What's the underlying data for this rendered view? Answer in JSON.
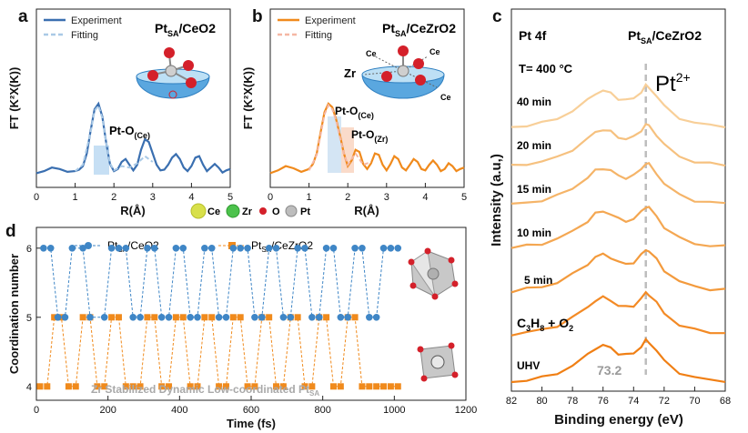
{
  "chart_data": [
    {
      "panel": "a",
      "type": "line",
      "title_main": "Pt",
      "title_sub": "SA",
      "title_rest": "/CeO2",
      "xlabel": "R(Å)",
      "ylabel": "FT (K²X(K))",
      "xlim": [
        0,
        5
      ],
      "x_ticks": [
        "0",
        "1",
        "2",
        "3",
        "4",
        "5"
      ],
      "legend": [
        "Experiment",
        "Fitting"
      ],
      "annotation_main": "Pt-O",
      "annotation_sub": "(Ce)",
      "series": [
        {
          "name": "Experiment",
          "color": "#3a6fb0",
          "x": [
            0,
            0.2,
            0.4,
            0.6,
            0.8,
            1.0,
            1.1,
            1.2,
            1.3,
            1.4,
            1.5,
            1.6,
            1.7,
            1.8,
            1.9,
            2.0,
            2.1,
            2.2,
            2.3,
            2.4,
            2.5,
            2.6,
            2.7,
            2.8,
            2.9,
            3.0,
            3.1,
            3.2,
            3.3,
            3.4,
            3.5,
            3.6,
            3.7,
            3.8,
            3.9,
            4.0,
            4.1,
            4.2,
            4.3,
            4.4,
            4.5,
            4.6,
            4.7,
            4.8,
            4.9,
            5.0
          ],
          "y": [
            0.02,
            0.05,
            0.1,
            0.08,
            0.04,
            0.05,
            0.07,
            0.12,
            0.3,
            0.62,
            0.92,
            1.0,
            0.82,
            0.45,
            0.15,
            0.05,
            0.08,
            0.18,
            0.22,
            0.14,
            0.06,
            0.14,
            0.35,
            0.5,
            0.46,
            0.3,
            0.14,
            0.06,
            0.07,
            0.14,
            0.24,
            0.29,
            0.22,
            0.1,
            0.05,
            0.12,
            0.24,
            0.26,
            0.14,
            0.05,
            0.1,
            0.15,
            0.1,
            0.03,
            0.06,
            0.08
          ]
        },
        {
          "name": "Fitting",
          "color": "#a9c9e6",
          "x": [
            1.0,
            1.2,
            1.4,
            1.5,
            1.6,
            1.7,
            1.8,
            1.9,
            2.0,
            2.2,
            2.4,
            2.6,
            2.8,
            3.0
          ],
          "y": [
            0.05,
            0.14,
            0.6,
            0.9,
            0.97,
            0.8,
            0.45,
            0.16,
            0.06,
            0.12,
            0.1,
            0.16,
            0.26,
            0.18
          ]
        }
      ]
    },
    {
      "panel": "b",
      "type": "line",
      "title_main": "Pt",
      "title_sub": "SA",
      "title_rest": "/CeZrO2",
      "xlabel": "R(Å)",
      "ylabel": "FT (K²X(K))",
      "xlim": [
        0,
        5
      ],
      "x_ticks": [
        "0",
        "1",
        "2",
        "3",
        "4",
        "5"
      ],
      "legend": [
        "Experiment",
        "Fitting"
      ],
      "annotations": [
        {
          "main": "Pt-O",
          "sub": "(Ce)"
        },
        {
          "main": "Pt-O",
          "sub": "(Zr)"
        }
      ],
      "series": [
        {
          "name": "Experiment",
          "color": "#f08a1c",
          "x": [
            0,
            0.2,
            0.4,
            0.6,
            0.8,
            1.0,
            1.1,
            1.2,
            1.3,
            1.4,
            1.5,
            1.6,
            1.7,
            1.8,
            1.9,
            2.0,
            2.1,
            2.2,
            2.3,
            2.4,
            2.5,
            2.6,
            2.7,
            2.8,
            2.9,
            3.0,
            3.1,
            3.2,
            3.3,
            3.4,
            3.5,
            3.6,
            3.7,
            3.8,
            3.9,
            4.0,
            4.1,
            4.2,
            4.3,
            4.4,
            4.5,
            4.6,
            4.7,
            4.8,
            4.9,
            5.0
          ],
          "y": [
            0.02,
            0.06,
            0.12,
            0.09,
            0.04,
            0.08,
            0.15,
            0.3,
            0.6,
            0.88,
            1.0,
            0.95,
            0.78,
            0.55,
            0.3,
            0.12,
            0.2,
            0.35,
            0.32,
            0.15,
            0.08,
            0.16,
            0.3,
            0.28,
            0.14,
            0.06,
            0.15,
            0.26,
            0.22,
            0.1,
            0.06,
            0.14,
            0.22,
            0.18,
            0.08,
            0.06,
            0.14,
            0.2,
            0.14,
            0.05,
            0.08,
            0.16,
            0.12,
            0.05,
            0.08,
            0.1
          ]
        },
        {
          "name": "Fitting",
          "color": "#f5b7a4",
          "x": [
            1.0,
            1.2,
            1.4,
            1.5,
            1.6,
            1.7,
            1.8,
            1.9,
            2.0,
            2.2,
            2.4,
            2.6
          ],
          "y": [
            0.06,
            0.28,
            0.85,
            0.98,
            0.92,
            0.76,
            0.52,
            0.3,
            0.14,
            0.3,
            0.14,
            0.18
          ]
        }
      ]
    },
    {
      "panel": "c",
      "type": "line",
      "title_main": "Pt",
      "title_sub": "SA",
      "title_rest": "/CeZrO2",
      "corner_label": "Pt 4f",
      "condition": "T= 400 °C",
      "peak_label": "Pt",
      "peak_sup": "2+",
      "ref_value_label": "73.2",
      "ref_line_x": 73.2,
      "gas_main": "C",
      "gas_sub1": "3",
      "gas_mid": "H",
      "gas_sub2": "8",
      "gas_rest": " + O",
      "gas_sub3": "2",
      "xlabel": "Binding energy (eV)",
      "ylabel": "Intensity (a.u,)",
      "xlim": [
        82,
        68
      ],
      "x_ticks": [
        "82",
        "80",
        "78",
        "76",
        "74",
        "72",
        "70",
        "68"
      ],
      "series": [
        {
          "name": "UHV",
          "color": "#f07f14",
          "offset": 0.0
        },
        {
          "name": "C3H8 + O2",
          "color": "#f38a25",
          "offset": 1.05
        },
        {
          "name": "5 min",
          "color": "#f39a3c",
          "offset": 2.0
        },
        {
          "name": "10 min",
          "color": "#f4a752",
          "offset": 2.95
        },
        {
          "name": "15 min",
          "color": "#f5b468",
          "offset": 3.9
        },
        {
          "name": "20 min",
          "color": "#f6c17f",
          "offset": 4.75
        },
        {
          "name": "40 min",
          "color": "#f8cf98",
          "offset": 5.6
        }
      ],
      "spectrum_x": [
        82,
        81,
        80,
        79,
        78,
        77,
        76.5,
        76,
        75.5,
        75,
        74.5,
        74,
        73.5,
        73.2,
        73,
        72.5,
        72,
        71,
        70,
        69,
        68
      ],
      "spectrum_y": [
        0.0,
        0.05,
        0.1,
        0.2,
        0.38,
        0.62,
        0.78,
        0.84,
        0.78,
        0.66,
        0.62,
        0.66,
        0.82,
        0.95,
        0.92,
        0.72,
        0.48,
        0.22,
        0.1,
        0.05,
        0.03
      ]
    },
    {
      "panel": "d",
      "type": "line",
      "xlabel": "Time (fs)",
      "ylabel": "Coordination number",
      "xlim": [
        0,
        1200
      ],
      "ylim": [
        3.8,
        6.3
      ],
      "x_ticks": [
        "0",
        "200",
        "400",
        "600",
        "800",
        "1000",
        "1200"
      ],
      "y_ticks": [
        "4",
        "5",
        "6"
      ],
      "legend": [
        {
          "main": "Pt",
          "sub": "SA",
          "rest": "/CeO2"
        },
        {
          "main": "Pt",
          "sub": "SA",
          "rest": "/CeZrO2"
        }
      ],
      "footer_main": "Zr Stabilized Dynamic Low-coordinated Pt",
      "footer_sub": "SA",
      "series": [
        {
          "name": "PtSA/CeO2",
          "color": "#3f86c6",
          "marker": "circle",
          "x": [
            20,
            40,
            60,
            80,
            100,
            130,
            150,
            190,
            210,
            230,
            250,
            270,
            290,
            310,
            330,
            350,
            370,
            390,
            410,
            430,
            450,
            470,
            490,
            510,
            530,
            550,
            570,
            590,
            610,
            630,
            650,
            670,
            690,
            710,
            730,
            750,
            770,
            790,
            810,
            830,
            850,
            870,
            890,
            910,
            930,
            950,
            970,
            990,
            1010
          ],
          "y": [
            6,
            6,
            5,
            5,
            6,
            6,
            5,
            5,
            6,
            6,
            6,
            5,
            5,
            6,
            6,
            5,
            5,
            6,
            6,
            5,
            5,
            6,
            6,
            5,
            5,
            6,
            6,
            6,
            5,
            5,
            6,
            6,
            5,
            5,
            6,
            6,
            5,
            5,
            6,
            6,
            5,
            5,
            6,
            6,
            5,
            5,
            6,
            6,
            6
          ]
        },
        {
          "name": "PtSA/CeZrO2",
          "color": "#f08a1c",
          "marker": "square",
          "x": [
            10,
            30,
            50,
            70,
            90,
            110,
            130,
            150,
            170,
            190,
            210,
            230,
            250,
            270,
            290,
            310,
            330,
            350,
            370,
            390,
            410,
            430,
            450,
            470,
            490,
            510,
            530,
            550,
            570,
            590,
            610,
            630,
            650,
            670,
            690,
            710,
            730,
            750,
            770,
            790,
            810,
            830,
            850,
            870,
            890,
            910,
            930,
            950,
            970,
            990,
            1010
          ],
          "y": [
            4,
            4,
            5,
            5,
            4,
            4,
            5,
            5,
            4,
            4,
            5,
            5,
            4,
            4,
            4,
            5,
            5,
            4,
            4,
            5,
            5,
            4,
            4,
            5,
            5,
            4,
            4,
            5,
            5,
            4,
            4,
            5,
            5,
            4,
            4,
            5,
            5,
            4,
            4,
            5,
            5,
            4,
            4,
            5,
            5,
            4,
            4,
            4,
            4,
            4,
            4
          ]
        }
      ]
    }
  ],
  "element_legend": {
    "items": [
      {
        "label": "Ce",
        "color": "#d8e04a"
      },
      {
        "label": "Zr",
        "color": "#4cc24c"
      },
      {
        "label": "O",
        "color": "#d4202a"
      },
      {
        "label": "Pt",
        "color": "#a9a9a9"
      }
    ]
  },
  "structure_labels": {
    "zr": "Zr",
    "ce": "Ce"
  }
}
